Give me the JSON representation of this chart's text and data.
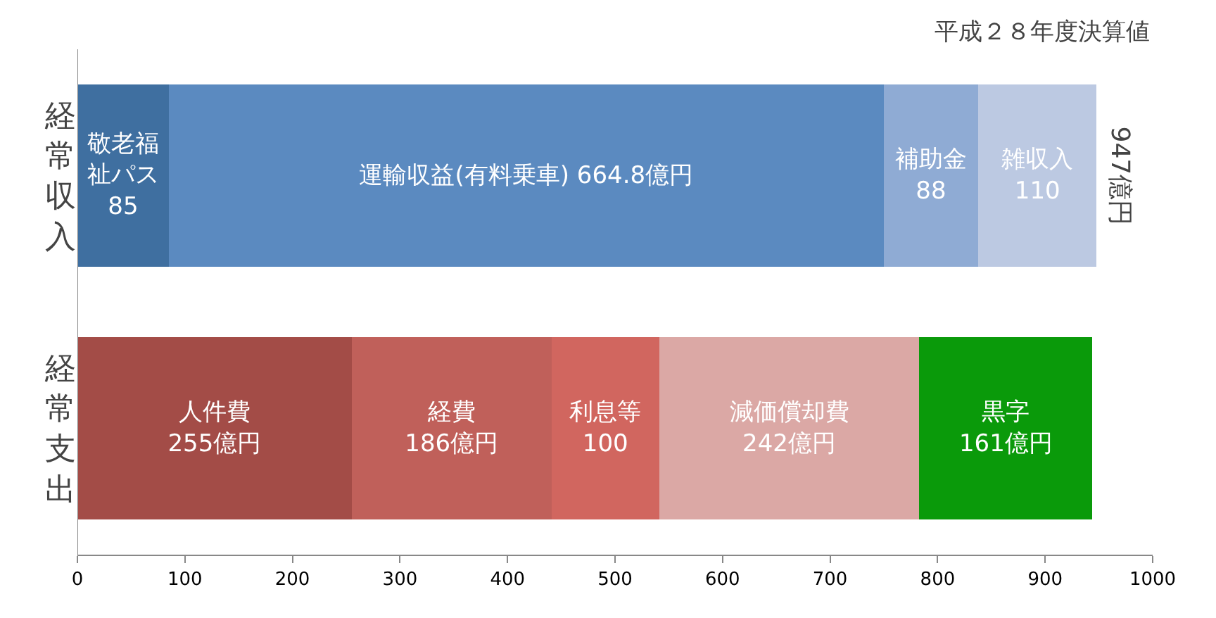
{
  "chart_data": {
    "type": "bar",
    "orientation": "horizontal",
    "stacked": true,
    "categories": [
      "経常収入",
      "経常支出"
    ],
    "series": [
      {
        "color": "#3f6fa0",
        "values": [
          85,
          null
        ],
        "value_labels": [
          "敬老福祉パス\n85",
          null
        ]
      },
      {
        "color": "#5b8ac0",
        "values": [
          664.8,
          null
        ],
        "value_labels": [
          "運輸収益(有料乗車) 664.8億円",
          null
        ]
      },
      {
        "color": "#8fabd4",
        "values": [
          88,
          null
        ],
        "value_labels": [
          "補助金\n88",
          null
        ]
      },
      {
        "color": "#bcc9e2",
        "values": [
          110,
          null
        ],
        "value_labels": [
          "雑収入\n110",
          null
        ]
      },
      {
        "color": "#a34c47",
        "values": [
          null,
          255
        ],
        "value_labels": [
          null,
          "人件費\n255億円"
        ]
      },
      {
        "color": "#c0605a",
        "values": [
          null,
          186
        ],
        "value_labels": [
          null,
          "経費\n186億円"
        ]
      },
      {
        "color": "#d1665f",
        "values": [
          null,
          100
        ],
        "value_labels": [
          null,
          "利息等\n100"
        ]
      },
      {
        "color": "#dba8a5",
        "values": [
          null,
          242
        ],
        "value_labels": [
          null,
          "減価償却費\n242億円"
        ]
      },
      {
        "color": "#0a9a0a",
        "values": [
          null,
          161
        ],
        "value_labels": [
          null,
          "黒字\n161億円"
        ]
      }
    ],
    "xlim": [
      0,
      1000
    ],
    "xticks": [
      0,
      100,
      200,
      300,
      400,
      500,
      600,
      700,
      800,
      900,
      1000
    ],
    "annotations": [
      "平成２８年度決算値",
      {
        "text": "947億円",
        "x": 947,
        "y": "経常収入"
      }
    ],
    "legend": false
  }
}
